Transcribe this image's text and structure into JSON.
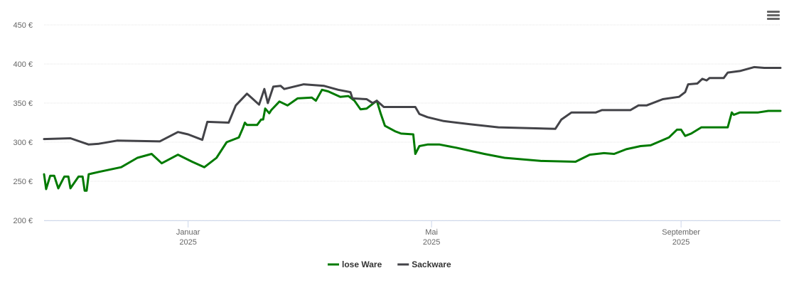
{
  "chart_data": {
    "type": "line",
    "xlim": [
      -71,
      292
    ],
    "xticks": [
      {
        "value": 0,
        "label": "Januar 2025"
      },
      {
        "value": 120,
        "label": "Mai 2025"
      },
      {
        "value": 243,
        "label": "September 2025"
      }
    ],
    "ylim": [
      200,
      450
    ],
    "yticks": [
      {
        "value": 200,
        "label": "200 €"
      },
      {
        "value": 250,
        "label": "250 €"
      },
      {
        "value": 300,
        "label": "300 €"
      },
      {
        "value": 350,
        "label": "350 €"
      },
      {
        "value": 400,
        "label": "400 €"
      },
      {
        "value": 450,
        "label": "450 €"
      }
    ],
    "grid": true,
    "legend": "bottom",
    "series": [
      {
        "name": "lose Ware",
        "color": "#007a00",
        "x": [
          -71,
          -70,
          -68,
          -66,
          -64,
          -61,
          -59,
          -58,
          -54,
          -52,
          -51,
          -50,
          -49,
          -44,
          -33,
          -25,
          -18,
          -13,
          -5,
          2,
          8,
          14,
          19,
          25,
          27,
          28,
          29,
          34,
          36,
          37,
          38,
          40,
          41,
          45,
          49,
          54,
          61,
          63,
          66,
          69,
          75,
          79,
          82,
          85,
          88,
          93,
          95,
          97,
          102,
          105,
          111,
          112,
          114,
          118,
          124,
          132,
          146,
          156,
          174,
          191,
          198,
          205,
          210,
          216,
          223,
          228,
          237,
          241,
          243,
          245,
          248,
          253,
          266,
          268,
          269,
          272,
          281,
          286,
          292
        ],
        "values": [
          259,
          240,
          257,
          257,
          241,
          256,
          256,
          241,
          256,
          256,
          238,
          238,
          259,
          262,
          268,
          280,
          285,
          273,
          284,
          275,
          268,
          280,
          300,
          306,
          318,
          325,
          322,
          322,
          329,
          329,
          343,
          337,
          341,
          352,
          347,
          356,
          357,
          353,
          367,
          365,
          358,
          359,
          353,
          342,
          343,
          353,
          336,
          321,
          314,
          311,
          310,
          285,
          295,
          297,
          297,
          293,
          285,
          280,
          276,
          275,
          284,
          286,
          285,
          291,
          295,
          296,
          306,
          316,
          316,
          308,
          311,
          319,
          319,
          338,
          335,
          338,
          338,
          340,
          340
        ]
      },
      {
        "name": "Sackware",
        "color": "#434348",
        "x": [
          -71,
          -58,
          -49,
          -44,
          -35,
          -14,
          -5,
          0,
          7,
          9.5,
          20,
          23.5,
          29,
          31.6,
          35,
          37.6,
          39.3,
          42,
          45.6,
          47.4,
          57,
          67,
          74,
          80,
          81,
          88,
          91,
          93,
          96.5,
          112,
          114,
          118,
          126,
          139,
          153,
          181,
          184,
          189,
          201,
          204,
          218,
          222,
          226,
          234,
          242,
          245,
          246.5,
          251,
          253.5,
          255.6,
          257,
          264,
          266,
          272,
          279,
          284,
          292
        ],
        "values": [
          304,
          305,
          297,
          298,
          302,
          301,
          313,
          310,
          303,
          326,
          325,
          347,
          362,
          356,
          348,
          368,
          350,
          371,
          372,
          368,
          374,
          372,
          367,
          364,
          356,
          355,
          350,
          353,
          345,
          345,
          336,
          332,
          327,
          323,
          319,
          317,
          329,
          338,
          338,
          341,
          341,
          347,
          347,
          355,
          358,
          364,
          374,
          375,
          381,
          379,
          382,
          382,
          389,
          391,
          396,
          395,
          395
        ]
      }
    ]
  }
}
